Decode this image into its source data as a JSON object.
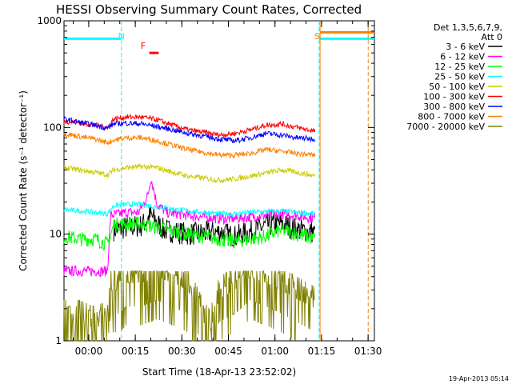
{
  "chart_data": {
    "type": "line",
    "title": "HESSI Observing Summary Count Rates, Corrected",
    "xlabel": "Start Time (18-Apr-13 23:52:02)",
    "ylabel": "Corrected Count Rate (s⁻¹ detector⁻¹)",
    "yscale": "log",
    "ylim": [
      1,
      1000
    ],
    "xlim_minutes_from_start": [
      0,
      100
    ],
    "x_ticks": [
      "00:00",
      "00:15",
      "00:30",
      "00:45",
      "01:00",
      "01:15",
      "01:30"
    ],
    "x_tick_minutes": [
      7.97,
      22.97,
      37.97,
      52.97,
      67.97,
      82.97,
      97.97
    ],
    "y_ticks": [
      "1",
      "10",
      "100",
      "1000"
    ],
    "y_tick_values": [
      1,
      10,
      100,
      1000
    ],
    "timestamp": "19-Apr-2013 05:14",
    "flags": [
      {
        "label": "N",
        "color": "#00ffff",
        "x_minutes": 18.5
      },
      {
        "label": "F",
        "color": "#ff0000",
        "x_minutes": 25.5
      },
      {
        "label": "S",
        "color": "#ff8c00",
        "x_minutes": 81.5
      }
    ],
    "night_intervals": [
      [
        0,
        18.5
      ],
      [
        82.2,
        100
      ]
    ],
    "saa_interval": [
      82.5,
      100
    ],
    "flare_bar": [
      27.5,
      30.5
    ],
    "night_periods_minutes": [
      [
        0,
        18.5
      ],
      [
        82.2,
        100
      ]
    ],
    "legend": {
      "header": [
        "Det 1,3,5,6,7,9,",
        "Att 0"
      ],
      "position": "right"
    },
    "series": [
      {
        "name": "3 - 6 keV",
        "color": "#000000",
        "x": [
          0,
          15,
          16,
          20,
          25,
          28,
          32,
          40,
          50,
          55,
          60,
          65,
          70,
          75,
          80,
          81
        ],
        "y": [
          null,
          null,
          11,
          11.5,
          12,
          15,
          11,
          10,
          10.5,
          9.5,
          10.5,
          12,
          12.5,
          11,
          10.5,
          10
        ]
      },
      {
        "name": "6 - 12 keV",
        "color": "#ff00ff",
        "x": [
          0,
          12,
          14,
          15,
          18,
          20,
          24,
          27,
          28,
          30,
          33,
          40,
          50,
          55,
          60,
          70,
          75,
          81
        ],
        "y": [
          4.5,
          4.5,
          4.5,
          15,
          15.5,
          16,
          16,
          23,
          34,
          19,
          16,
          15,
          14,
          14,
          14.5,
          15.5,
          15,
          14
        ]
      },
      {
        "name": "12 - 25 keV",
        "color": "#00ff00",
        "x": [
          0,
          5,
          10,
          12,
          14,
          16,
          18,
          25,
          30,
          40,
          50,
          55,
          60,
          65,
          70,
          75,
          81
        ],
        "y": [
          9.5,
          9,
          9,
          8.5,
          8,
          12,
          12.5,
          12.5,
          11.5,
          10,
          9,
          8.5,
          9,
          9.5,
          11,
          10,
          9
        ]
      },
      {
        "name": "25 - 50 keV",
        "color": "#00ffff",
        "x": [
          0,
          5,
          10,
          14,
          16,
          20,
          25,
          30,
          40,
          50,
          55,
          60,
          70,
          75,
          81
        ],
        "y": [
          17,
          16.5,
          16,
          15.5,
          18.5,
          19,
          19,
          18,
          16.5,
          15.5,
          15.5,
          16,
          16.5,
          16,
          15.5
        ]
      },
      {
        "name": "50 - 100 keV",
        "color": "#cccc00",
        "x": [
          0,
          5,
          10,
          14,
          16,
          20,
          25,
          30,
          35,
          40,
          50,
          55,
          60,
          70,
          75,
          81
        ],
        "y": [
          42,
          40,
          38,
          36,
          40,
          42,
          43,
          42,
          38,
          35,
          32,
          33,
          35,
          40,
          38,
          35
        ]
      },
      {
        "name": "100 - 300 keV",
        "color": "#ff0000",
        "x": [
          0,
          5,
          10,
          14,
          16,
          20,
          25,
          30,
          35,
          40,
          50,
          55,
          60,
          65,
          70,
          75,
          81
        ],
        "y": [
          115,
          110,
          105,
          100,
          120,
          125,
          125,
          118,
          105,
          95,
          85,
          88,
          95,
          105,
          108,
          100,
          92
        ]
      },
      {
        "name": "300 - 800 keV",
        "color": "#0000ff",
        "x": [
          0,
          5,
          10,
          14,
          16,
          20,
          25,
          30,
          35,
          40,
          50,
          55,
          60,
          65,
          70,
          75,
          81
        ],
        "y": [
          120,
          112,
          105,
          98,
          108,
          110,
          108,
          102,
          95,
          88,
          78,
          75,
          80,
          88,
          85,
          80,
          78
        ]
      },
      {
        "name": "800 - 7000 keV",
        "color": "#ff8000",
        "x": [
          0,
          5,
          10,
          14,
          16,
          20,
          25,
          30,
          35,
          40,
          50,
          55,
          60,
          65,
          70,
          75,
          81
        ],
        "y": [
          88,
          82,
          78,
          72,
          76,
          80,
          80,
          75,
          68,
          62,
          55,
          55,
          57,
          62,
          60,
          57,
          55
        ]
      },
      {
        "name": "7000 - 20000 keV",
        "color": "#808000",
        "x": [
          0,
          5,
          10,
          14,
          15,
          18,
          20,
          25,
          30,
          35,
          40,
          45,
          47,
          50,
          55,
          60,
          65,
          70,
          75,
          81
        ],
        "y": [
          1.5,
          1.5,
          1.3,
          1.5,
          3,
          3,
          3.5,
          3.5,
          4,
          3.5,
          3,
          1.5,
          1.2,
          2.5,
          3,
          4,
          3.5,
          3,
          2.5,
          2
        ]
      }
    ]
  }
}
